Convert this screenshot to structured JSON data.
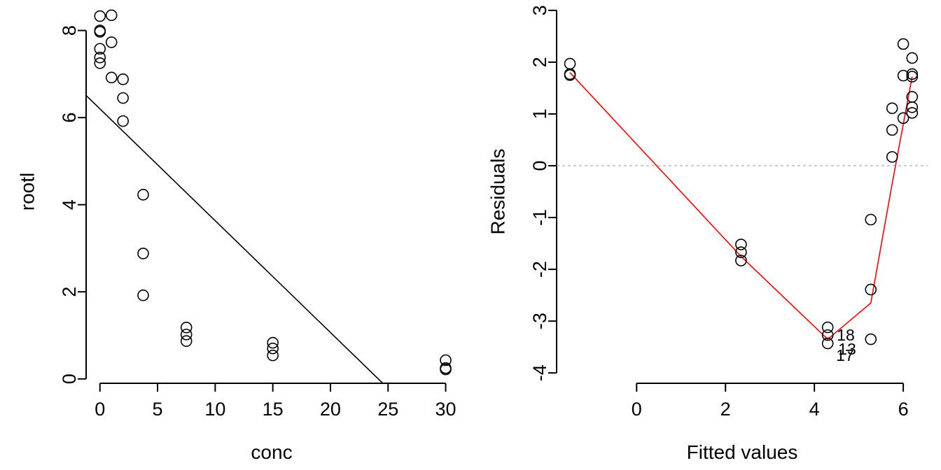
{
  "chart_data": [
    {
      "type": "scatter",
      "title": "",
      "xlabel": "conc",
      "ylabel": "rootl",
      "xlim": [
        -1.2,
        31.0
      ],
      "ylim": [
        -0.1,
        8.7
      ],
      "xticks": [
        0,
        5,
        10,
        15,
        20,
        25,
        30
      ],
      "yticks": [
        0,
        2,
        4,
        6,
        8
      ],
      "points": [
        {
          "x": 0,
          "y": 8.33
        },
        {
          "x": 0,
          "y": 8.0
        },
        {
          "x": 0,
          "y": 7.97
        },
        {
          "x": 0,
          "y": 7.58
        },
        {
          "x": 0,
          "y": 7.38
        },
        {
          "x": 0,
          "y": 7.25
        },
        {
          "x": 1,
          "y": 8.35
        },
        {
          "x": 1,
          "y": 7.73
        },
        {
          "x": 1,
          "y": 6.92
        },
        {
          "x": 2,
          "y": 6.88
        },
        {
          "x": 2,
          "y": 6.45
        },
        {
          "x": 2,
          "y": 5.92
        },
        {
          "x": 3.75,
          "y": 4.23
        },
        {
          "x": 3.75,
          "y": 2.88
        },
        {
          "x": 3.75,
          "y": 1.92
        },
        {
          "x": 7.5,
          "y": 1.18
        },
        {
          "x": 7.5,
          "y": 1.02
        },
        {
          "x": 7.5,
          "y": 0.87
        },
        {
          "x": 15,
          "y": 0.83
        },
        {
          "x": 15,
          "y": 0.7
        },
        {
          "x": 15,
          "y": 0.54
        },
        {
          "x": 30,
          "y": 0.43
        },
        {
          "x": 30,
          "y": 0.25
        },
        {
          "x": 30,
          "y": 0.22
        }
      ],
      "fit_line": {
        "intercept": 6.2,
        "slope": -0.2567
      }
    },
    {
      "type": "scatter",
      "title": "",
      "xlabel": "Fitted values",
      "ylabel": "Residuals",
      "xlim": [
        -1.8,
        6.55
      ],
      "ylim": [
        -4.2,
        3.2
      ],
      "xticks": [
        0,
        2,
        4,
        6
      ],
      "yticks": [
        -4,
        -3,
        -2,
        -1,
        0,
        1,
        2,
        3
      ],
      "points": [
        {
          "x": -1.5,
          "y": 1.97
        },
        {
          "x": -1.5,
          "y": 1.77
        },
        {
          "x": -1.5,
          "y": 1.75
        },
        {
          "x": 2.35,
          "y": -1.52
        },
        {
          "x": 2.35,
          "y": -1.67
        },
        {
          "x": 2.35,
          "y": -1.83
        },
        {
          "x": 4.3,
          "y": -3.12
        },
        {
          "x": 4.3,
          "y": -3.27
        },
        {
          "x": 4.3,
          "y": -3.43
        },
        {
          "x": 5.27,
          "y": -1.04
        },
        {
          "x": 5.27,
          "y": -2.39
        },
        {
          "x": 5.27,
          "y": -3.35
        },
        {
          "x": 5.75,
          "y": 1.11
        },
        {
          "x": 5.75,
          "y": 0.69
        },
        {
          "x": 5.75,
          "y": 0.17
        },
        {
          "x": 6.0,
          "y": 2.35
        },
        {
          "x": 6.0,
          "y": 1.74
        },
        {
          "x": 6.0,
          "y": 0.92
        },
        {
          "x": 6.2,
          "y": 2.08
        },
        {
          "x": 6.2,
          "y": 1.77
        },
        {
          "x": 6.2,
          "y": 1.72
        },
        {
          "x": 6.2,
          "y": 1.33
        },
        {
          "x": 6.2,
          "y": 1.13
        },
        {
          "x": 6.2,
          "y": 1.02
        }
      ],
      "smooth_line": [
        {
          "x": -1.5,
          "y": 1.8
        },
        {
          "x": 2.35,
          "y": -1.75
        },
        {
          "x": 4.3,
          "y": -3.35
        },
        {
          "x": 5.27,
          "y": -2.65
        },
        {
          "x": 5.75,
          "y": -0.35
        },
        {
          "x": 6.0,
          "y": 0.8
        },
        {
          "x": 6.2,
          "y": 1.72
        }
      ],
      "reference_line": {
        "y": 0
      },
      "point_labels": [
        {
          "text": "18",
          "x": 4.3,
          "y": -3.27
        },
        {
          "text": "13",
          "x": 4.3,
          "y": -3.43
        },
        {
          "text": "17",
          "x": 4.3,
          "y": -3.43
        }
      ]
    }
  ]
}
